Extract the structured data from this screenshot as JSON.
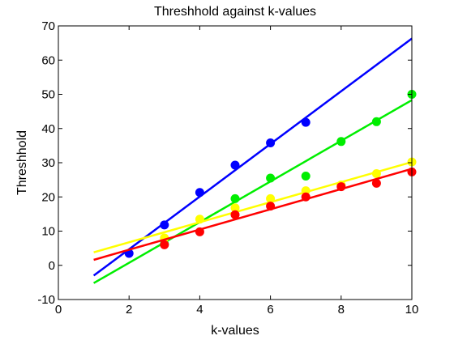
{
  "chart_data": {
    "type": "scatter",
    "title": "Threshhold against k-values",
    "xlabel": "k-values",
    "ylabel": "Threshhold",
    "xlim": [
      0,
      10
    ],
    "ylim": [
      -10,
      70
    ],
    "xticks": [
      "0",
      "2",
      "4",
      "6",
      "8",
      "10"
    ],
    "yticks": [
      "-10",
      "0",
      "10",
      "20",
      "30",
      "40",
      "50",
      "60",
      "70"
    ],
    "grid": false,
    "legend": "none",
    "series": [
      {
        "color": "#0000ff",
        "points": [
          [
            2,
            3.5
          ],
          [
            3,
            11.8
          ],
          [
            4,
            21.3
          ],
          [
            5,
            29.3
          ],
          [
            6,
            35.8
          ],
          [
            7,
            41.8
          ]
        ],
        "fit": [
          [
            1,
            -3
          ],
          [
            10,
            66.3
          ]
        ]
      },
      {
        "color": "#00ee00",
        "points": [
          [
            3,
            6.2
          ],
          [
            5,
            19.5
          ],
          [
            6,
            25.5
          ],
          [
            7,
            26.1
          ],
          [
            8,
            36.2
          ],
          [
            9,
            42
          ],
          [
            10,
            50
          ]
        ],
        "fit": [
          [
            1,
            -5.2
          ],
          [
            10,
            48.3
          ]
        ]
      },
      {
        "color": "#ffff00",
        "points": [
          [
            3,
            8
          ],
          [
            4,
            13.5
          ],
          [
            5,
            16.8
          ],
          [
            6,
            19.5
          ],
          [
            7,
            21.8
          ],
          [
            8,
            23.5
          ],
          [
            9,
            26.8
          ],
          [
            10,
            30.2
          ]
        ],
        "fit": [
          [
            1,
            3.8
          ],
          [
            10,
            30.2
          ]
        ]
      },
      {
        "color": "#ff0000",
        "points": [
          [
            3,
            6
          ],
          [
            4,
            9.8
          ],
          [
            5,
            14.8
          ],
          [
            6,
            17.3
          ],
          [
            7,
            20
          ],
          [
            8,
            23
          ],
          [
            9,
            24
          ],
          [
            10,
            27.3
          ]
        ],
        "fit": [
          [
            1,
            1.6
          ],
          [
            10,
            28.2
          ]
        ]
      }
    ]
  }
}
